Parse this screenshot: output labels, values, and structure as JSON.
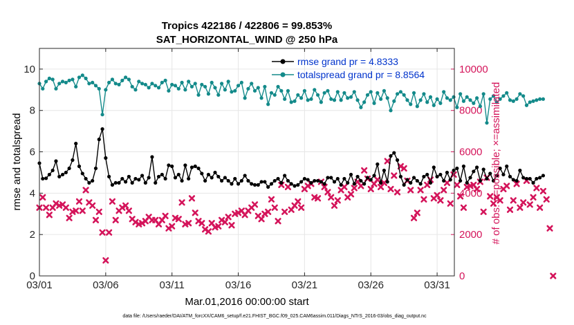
{
  "chart_data": {
    "type": "line",
    "title_line1": "Tropics 422186 / 422806 = 99.853%",
    "title_line2": "SAT_HORIZONTAL_WIND @ 250 hPa",
    "xlabel": "Mar.01,2016 00:00:00 start",
    "ylabel_left": "rmse and totalspread",
    "ylabel_right": "# of obs: o=possible; ×=assimilated",
    "footnote": "data file: /Users/raeder/DAI/ATM_forcXX/CAM6_setup/f.e21.FHIST_BGC.f09_025.CAM6assim.011/Diags_NTrS_2016-03/obs_diag_output.nc",
    "x_tick_labels": [
      "03/01",
      "03/06",
      "03/11",
      "03/16",
      "03/21",
      "03/26",
      "03/31"
    ],
    "x_tick_days": [
      0,
      5,
      10,
      15,
      20,
      25,
      30
    ],
    "xlim": [
      0,
      31.3
    ],
    "ylim_left": [
      0,
      11
    ],
    "left_ticks": [
      0,
      2,
      4,
      6,
      8,
      10
    ],
    "left_tick_labels": [
      "0",
      "2",
      "4",
      "6",
      "8",
      "10"
    ],
    "ylim_right": [
      0,
      11000
    ],
    "right_ticks": [
      0,
      2000,
      4000,
      6000,
      8000,
      10000
    ],
    "right_tick_labels": [
      "0",
      "2000",
      "4000",
      "6000",
      "8000",
      "10000"
    ],
    "step_days": 0.25,
    "legend_position": "top-right",
    "colors": {
      "rmse": "#000000",
      "totalspread": "#138a8a",
      "obs": "#d4145a",
      "legend_text": "#0033cc",
      "right_axis": "#d4145a"
    },
    "series": [
      {
        "name": "rmse",
        "legend": "rmse grand pr = 4.8333",
        "axis": "left",
        "values": [
          5.45,
          4.7,
          4.72,
          4.9,
          5.1,
          5.55,
          4.8,
          4.9,
          5.0,
          5.2,
          5.6,
          6.4,
          5.3,
          4.95,
          4.7,
          4.5,
          4.6,
          5.2,
          6.6,
          7.1,
          5.7,
          4.8,
          4.4,
          4.5,
          4.5,
          4.7,
          4.55,
          4.8,
          4.5,
          4.7,
          4.65,
          4.85,
          4.5,
          4.75,
          5.75,
          4.5,
          4.8,
          4.9,
          4.7,
          5.35,
          5.3,
          4.75,
          4.9,
          4.6,
          5.35,
          4.7,
          5.25,
          5.3,
          5.2,
          4.95,
          4.6,
          4.9,
          4.75,
          5.0,
          4.8,
          4.6,
          4.75,
          4.6,
          4.45,
          4.7,
          4.45,
          4.6,
          4.85,
          4.6,
          4.45,
          4.4,
          4.4,
          4.55,
          4.55,
          4.3,
          4.45,
          4.6,
          4.7,
          4.5,
          4.85,
          4.6,
          4.45,
          4.35,
          4.4,
          4.55,
          4.7,
          4.65,
          4.5,
          4.6,
          4.6,
          4.55,
          4.45,
          4.75,
          4.75,
          4.55,
          4.7,
          4.4,
          4.7,
          4.5,
          4.9,
          4.45,
          4.8,
          4.6,
          4.45,
          4.75,
          4.65,
          4.85,
          5.4,
          4.5,
          5.1,
          4.55,
          5.8,
          5.95,
          5.6,
          4.8,
          4.4,
          4.65,
          4.5,
          4.75,
          4.6,
          4.45,
          4.8,
          4.9,
          4.5,
          5.25,
          4.8,
          4.9,
          4.6,
          5.0,
          4.65,
          5.1,
          5.2,
          4.6,
          5.3,
          4.5,
          4.75,
          5.05,
          5.25,
          4.6,
          5.15,
          4.7,
          4.95,
          4.6,
          4.85,
          5.2,
          4.9,
          5.3,
          4.8,
          4.65,
          4.6,
          5.1,
          4.75,
          4.7,
          4.7,
          4.5,
          4.7,
          4.75,
          4.85
        ]
      },
      {
        "name": "totalspread",
        "legend": "totalspread grand pr = 8.8564",
        "axis": "left",
        "values": [
          9.3,
          9.05,
          9.4,
          9.55,
          9.5,
          9.05,
          9.3,
          9.4,
          9.35,
          9.45,
          9.5,
          9.15,
          9.6,
          9.7,
          9.55,
          9.3,
          9.35,
          9.2,
          9.05,
          7.8,
          9.0,
          9.35,
          9.5,
          9.3,
          9.25,
          9.45,
          9.6,
          9.5,
          9.15,
          9.0,
          9.4,
          9.3,
          9.25,
          9.1,
          9.3,
          9.2,
          9.1,
          9.35,
          9.45,
          8.95,
          9.25,
          9.2,
          9.05,
          9.35,
          9.0,
          9.4,
          9.15,
          9.3,
          8.75,
          9.25,
          9.15,
          8.8,
          9.35,
          9.1,
          8.75,
          9.3,
          9.0,
          9.4,
          8.9,
          8.95,
          9.2,
          9.35,
          8.6,
          9.05,
          9.3,
          8.95,
          9.1,
          8.6,
          9.15,
          8.3,
          8.85,
          8.75,
          9.15,
          8.95,
          8.55,
          8.95,
          8.4,
          8.45,
          8.75,
          8.6,
          8.95,
          8.5,
          8.55,
          9.0,
          8.75,
          8.4,
          8.85,
          8.95,
          8.55,
          8.5,
          8.9,
          8.5,
          8.85,
          8.6,
          8.65,
          8.9,
          8.5,
          8.15,
          8.4,
          8.75,
          8.9,
          8.35,
          8.85,
          8.55,
          8.95,
          8.6,
          8.0,
          8.45,
          8.8,
          8.9,
          8.75,
          8.5,
          8.3,
          8.85,
          8.2,
          8.5,
          8.8,
          8.4,
          8.65,
          8.25,
          8.55,
          8.35,
          8.9,
          8.6,
          8.5,
          8.65,
          8.15,
          8.8,
          8.45,
          8.65,
          8.5,
          8.35,
          8.6,
          8.2,
          8.8,
          7.4,
          8.55,
          8.7,
          8.4,
          8.55,
          8.7,
          8.85,
          8.5,
          8.45,
          8.55,
          8.8,
          8.7,
          8.25,
          8.4,
          8.45,
          8.5,
          8.55,
          8.55
        ]
      },
      {
        "name": "obs_assimilated",
        "legend": "",
        "axis": "right",
        "marker": "×",
        "values": [
          3300,
          3800,
          3300,
          2950,
          3300,
          3500,
          3400,
          3450,
          3300,
          2800,
          3100,
          3150,
          3600,
          3150,
          4150,
          3550,
          3400,
          2700,
          3100,
          2100,
          750,
          2100,
          3600,
          2700,
          3150,
          3300,
          3400,
          3150,
          2750,
          2600,
          2500,
          2550,
          2650,
          2850,
          2700,
          2700,
          2500,
          2700,
          2900,
          2300,
          2400,
          2800,
          2750,
          3550,
          2500,
          2550,
          3750,
          3050,
          2650,
          2550,
          2250,
          2150,
          2550,
          2350,
          2400,
          2700,
          2600,
          2850,
          2450,
          3000,
          3050,
          3150,
          2950,
          3150,
          3300,
          3450,
          2900,
          2750,
          3000,
          3100,
          3700,
          3300,
          2650,
          4400,
          3100,
          4300,
          3200,
          3400,
          3600,
          3300,
          4200,
          4350,
          4450,
          3800,
          3750,
          4550,
          4300,
          4050,
          3800,
          3400,
          3650,
          4150,
          4300,
          3800,
          3950,
          4250,
          4550,
          4350,
          5100,
          4700,
          4200,
          4450,
          4650,
          4300,
          4500,
          5550,
          4200,
          4850,
          4050,
          5300,
          5200,
          4600,
          4150,
          2800,
          3050,
          4150,
          3700,
          4400,
          4650,
          3750,
          3900,
          3650,
          4150,
          4500,
          3500,
          4900,
          4400,
          3850,
          3300,
          4300,
          4350,
          4400,
          4200,
          4550,
          3100,
          4750,
          3850,
          3500,
          3800,
          3650,
          4200,
          4350,
          3200,
          3650,
          4450,
          3300,
          3550,
          4600,
          3450,
          3800,
          4250,
          3300,
          4100,
          3700,
          2300,
          0
        ]
      }
    ]
  }
}
